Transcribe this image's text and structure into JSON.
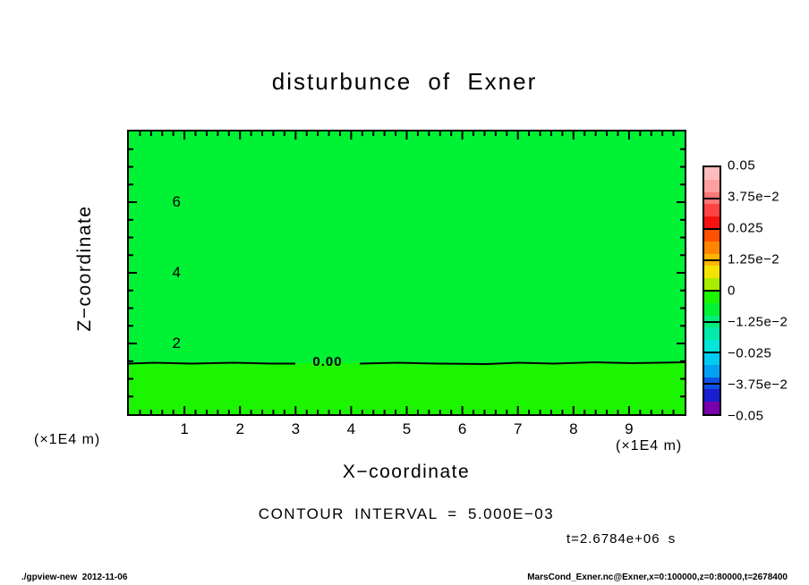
{
  "title": "disturbunce of Exner",
  "axes": {
    "x_label": "X−coordinate",
    "x_unit": "(×1E4 m)",
    "x_ticks": [
      "1",
      "2",
      "3",
      "4",
      "5",
      "6",
      "7",
      "8",
      "9"
    ],
    "y_label": "Z−coordinate",
    "y_unit": "(×1E4 m)",
    "y_ticks": [
      "6",
      "4",
      "2"
    ]
  },
  "annotations": {
    "contour_label": "0.00",
    "contour_interval": "CONTOUR INTERVAL = 5.000E−03",
    "time_label": "t=2.6784e+06 s"
  },
  "colorbar": {
    "tick_labels": [
      "0.05",
      "3.75e−2",
      "0.025",
      "1.25e−2",
      "0",
      "−1.25e−2",
      "−0.025",
      "−3.75e−2",
      "−0.05"
    ],
    "band_colors": [
      "#ffbcbc",
      "#ff9e9e",
      "#ff7676",
      "#ff4242",
      "#f61111",
      "#ff5000",
      "#ff8500",
      "#ffb600",
      "#f2e400",
      "#a8ec00",
      "#1cf500",
      "#00f235",
      "#00ee79",
      "#00ebab",
      "#00e6d9",
      "#00ccf2",
      "#00a0f5",
      "#0d52e4",
      "#1a1ed2",
      "#7a00ad"
    ]
  },
  "plot_colors": {
    "upper_region": "#00f235",
    "lower_region": "#1cf500",
    "contour_line": "#000000"
  },
  "footer": {
    "left": "./gpview-new  2012-11-06",
    "right": "MarsCond_Exner.nc@Exner,x=0:100000,z=0:80000,t=2678400"
  },
  "chart_data": {
    "type": "heatmap",
    "title": "disturbunce of Exner",
    "xlabel": "X-coordinate (×1E4 m)",
    "ylabel": "Z-coordinate (×1E4 m)",
    "xlim": [
      0,
      10
    ],
    "ylim": [
      0,
      8
    ],
    "x_ticks": [
      1,
      2,
      3,
      4,
      5,
      6,
      7,
      8,
      9
    ],
    "y_ticks": [
      2,
      4,
      6
    ],
    "x_minor_step": 0.2,
    "y_minor_step": 0.5,
    "grid": false,
    "contour_interval": 0.005,
    "colorbar_range": [
      -0.05,
      0.05
    ],
    "colorbar_ticks": [
      0.05,
      0.0375,
      0.025,
      0.0125,
      0,
      -0.0125,
      -0.025,
      -0.0375,
      -0.05
    ],
    "zero_contour": {
      "label": "0.00",
      "z_position": 1.4
    },
    "regions": [
      {
        "name": "above zero contour",
        "z_range": [
          1.4,
          8
        ],
        "value_band": [
          -0.005,
          0
        ]
      },
      {
        "name": "below zero contour",
        "z_range": [
          0,
          1.4
        ],
        "value_band": [
          0,
          0.005
        ]
      }
    ],
    "time": "t=2.6784e+06 s",
    "legend_position": "right-colorbar"
  }
}
